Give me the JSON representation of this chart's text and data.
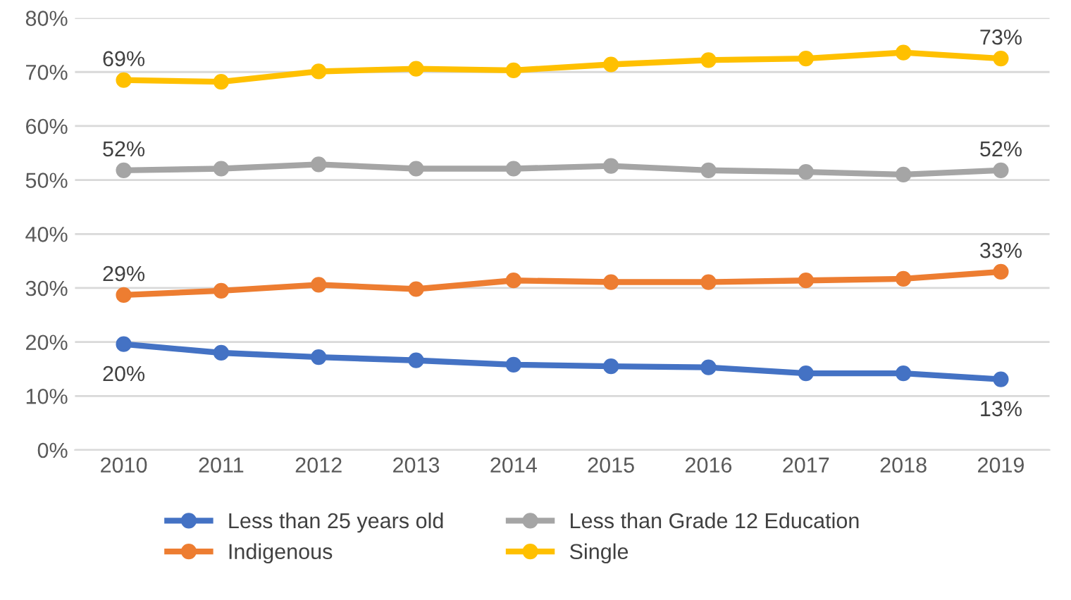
{
  "chart_data": {
    "type": "line",
    "categories": [
      "2010",
      "2011",
      "2012",
      "2013",
      "2014",
      "2015",
      "2016",
      "2017",
      "2018",
      "2019"
    ],
    "ylim": [
      0,
      80
    ],
    "yticks": [
      {
        "value": 0,
        "label": "0%"
      },
      {
        "value": 10,
        "label": "10%"
      },
      {
        "value": 20,
        "label": "20%"
      },
      {
        "value": 30,
        "label": "30%"
      },
      {
        "value": 40,
        "label": "40%"
      },
      {
        "value": 50,
        "label": "50%"
      },
      {
        "value": 60,
        "label": "60%"
      },
      {
        "value": 70,
        "label": "70%"
      },
      {
        "value": 80,
        "label": "80%"
      }
    ],
    "grid": "y",
    "legend": "bottom",
    "marker": "circle",
    "line_style": "solid",
    "series": [
      {
        "name": "Less than 25 years old",
        "color": "#4472c4",
        "values": [
          19.6,
          18,
          17.2,
          16.6,
          15.8,
          15.5,
          15.3,
          14.2,
          14.2,
          13.1
        ],
        "value_labels": [
          "20%",
          null,
          null,
          null,
          null,
          null,
          null,
          null,
          null,
          "13%"
        ]
      },
      {
        "name": "Indigenous",
        "color": "#ed7d31",
        "values": [
          28.7,
          29.5,
          30.6,
          29.8,
          31.4,
          31.1,
          31.1,
          31.4,
          31.7,
          33
        ],
        "value_labels": [
          "29%",
          null,
          null,
          null,
          null,
          null,
          null,
          null,
          null,
          "33%"
        ]
      },
      {
        "name": "Less than Grade 12 Education",
        "color": "#a5a5a5",
        "values": [
          51.8,
          52.1,
          52.9,
          52.1,
          52.1,
          52.6,
          51.8,
          51.5,
          51,
          51.8
        ],
        "value_labels": [
          "52%",
          null,
          null,
          null,
          null,
          null,
          null,
          null,
          null,
          "52%"
        ]
      },
      {
        "name": "Single",
        "color": "#ffc000",
        "values": [
          68.5,
          68.2,
          70.1,
          70.6,
          70.3,
          71.4,
          72.2,
          72.5,
          73.6,
          72.5
        ],
        "value_labels": [
          "69%",
          null,
          null,
          null,
          null,
          null,
          null,
          null,
          null,
          "73%"
        ]
      }
    ]
  }
}
